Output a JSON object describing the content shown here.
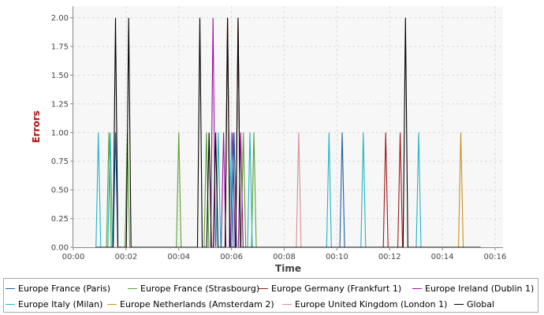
{
  "chart_data": {
    "type": "line",
    "title": "",
    "xlabel": "Time",
    "ylabel": "Errors",
    "xlim": [
      0,
      16.3
    ],
    "ylim": [
      0,
      2.1
    ],
    "x_ticks": [
      0,
      2,
      4,
      6,
      8,
      10,
      12,
      14,
      16
    ],
    "x_tick_labels": [
      "00:00",
      "00:02",
      "00:04",
      "00:06",
      "00:08",
      "00:10",
      "00:12",
      "00:14",
      "00:16"
    ],
    "y_ticks": [
      0,
      0.25,
      0.5,
      0.75,
      1.0,
      1.25,
      1.5,
      1.75,
      2.0
    ],
    "y_tick_labels": [
      "0.00",
      "0.25",
      "0.50",
      "0.75",
      "1.00",
      "1.25",
      "1.50",
      "1.75",
      "2.00"
    ],
    "grid": true,
    "legend_position": "bottom",
    "x_range_drawn": [
      0.85,
      15.45
    ],
    "series": [
      {
        "name": "Europe France (Paris)",
        "color": "#1f5fa0",
        "peaks": [
          [
            1.6,
            1
          ],
          [
            6.1,
            1
          ],
          [
            10.2,
            1
          ]
        ]
      },
      {
        "name": "Europe France (Strasbourg)",
        "color": "#5aa032",
        "peaks": [
          [
            1.35,
            1
          ],
          [
            2.05,
            1
          ],
          [
            4.0,
            1
          ],
          [
            5.05,
            1
          ],
          [
            6.45,
            1
          ],
          [
            6.85,
            1
          ]
        ]
      },
      {
        "name": "Europe Germany (Frankfurt 1)",
        "color": "#a01818",
        "peaks": [
          [
            5.85,
            2
          ],
          [
            6.25,
            2
          ],
          [
            11.85,
            1
          ],
          [
            12.4,
            1
          ]
        ]
      },
      {
        "name": "Europe Ireland (Dublin 1)",
        "color": "#9a149a",
        "peaks": [
          [
            5.3,
            2
          ],
          [
            5.7,
            1
          ],
          [
            6.05,
            1
          ],
          [
            6.35,
            1
          ]
        ]
      },
      {
        "name": "Europe Italy (Milan)",
        "color": "#22b4c4",
        "peaks": [
          [
            0.95,
            1
          ],
          [
            1.4,
            1
          ],
          [
            5.5,
            1
          ],
          [
            6.0,
            1
          ],
          [
            6.7,
            1
          ],
          [
            9.7,
            1
          ],
          [
            11.0,
            1
          ],
          [
            13.1,
            1
          ]
        ]
      },
      {
        "name": "Europe Netherlands (Amsterdam 2)",
        "color": "#c8921e",
        "peaks": [
          [
            14.7,
            1
          ]
        ]
      },
      {
        "name": "Europe United Kingdom (London 1)",
        "color": "#d69090",
        "peaks": [
          [
            8.55,
            1
          ]
        ]
      },
      {
        "name": "Global",
        "color": "#000000",
        "peaks": [
          [
            1.6,
            2
          ],
          [
            2.1,
            2
          ],
          [
            4.8,
            2
          ],
          [
            5.15,
            1
          ],
          [
            5.4,
            1
          ],
          [
            5.85,
            2
          ],
          [
            6.25,
            2
          ],
          [
            12.6,
            2
          ]
        ]
      }
    ]
  }
}
